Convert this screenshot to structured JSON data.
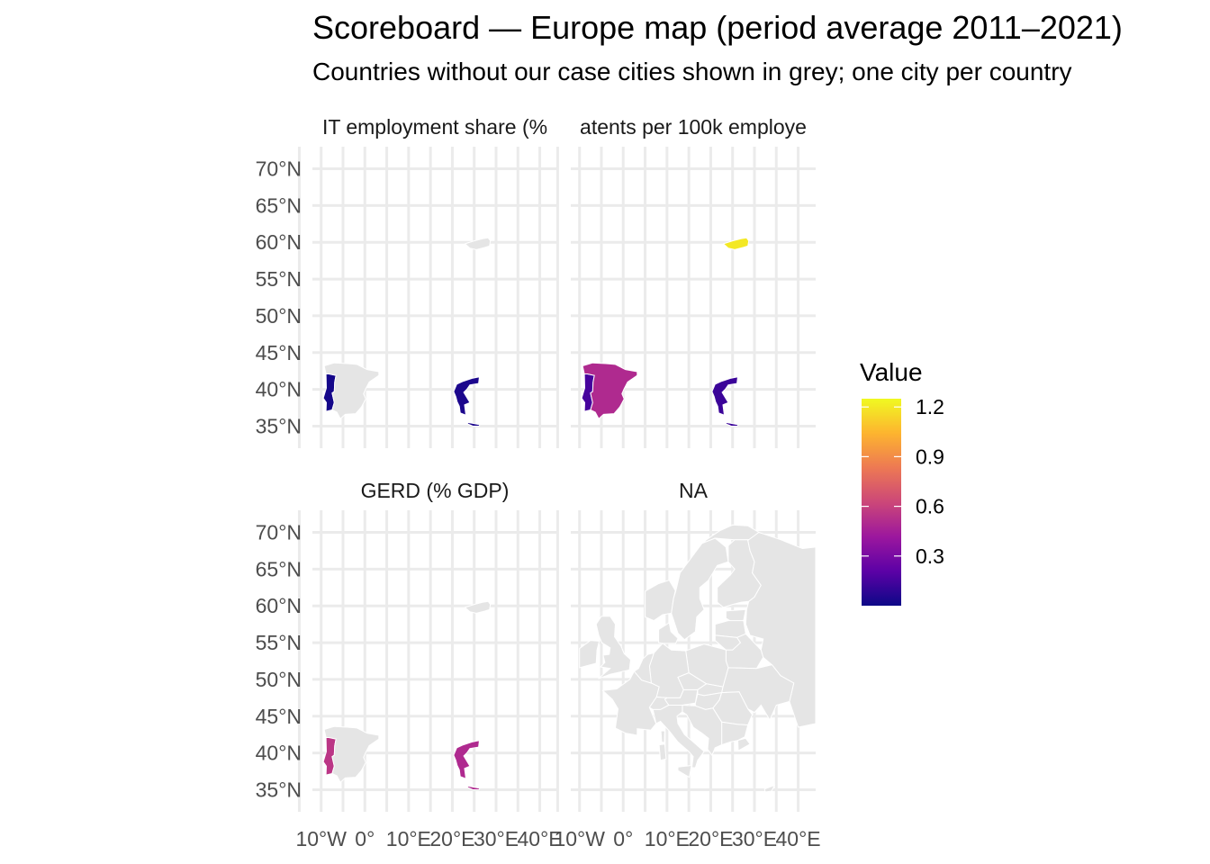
{
  "title": "Scoreboard — Europe map (period average 2011–2021)",
  "subtitle": "Countries without our case cities shown in grey; one city per country",
  "chart_data": {
    "type": "choropleth-map",
    "panels": [
      {
        "label": "IT employment share (%",
        "values": {
          "Portugal": 0.02,
          "Greece": 0.04,
          "Finland": null,
          "Spain": null
        }
      },
      {
        "label": "atents per 100k employe",
        "values": {
          "Portugal": 0.15,
          "Spain": 0.5,
          "Greece": 0.12,
          "Finland": 1.2
        }
      },
      {
        "label": "GERD (% GDP)",
        "values": {
          "Portugal": 0.55,
          "Greece": 0.5,
          "Finland": null,
          "Spain": null
        }
      },
      {
        "label": "NA",
        "values": {}
      }
    ],
    "lat_ticks": [
      "70°N",
      "65°N",
      "60°N",
      "55°N",
      "50°N",
      "45°N",
      "40°N",
      "35°N"
    ],
    "lon_tick_labels": [
      "10°W",
      "0°",
      "10°E",
      "20°E",
      "30°E",
      "40°E"
    ],
    "lat_range": [
      32,
      73
    ],
    "lon_range": [
      -12,
      44
    ],
    "legend": {
      "title": "Value",
      "labels": [
        "1.2",
        "0.9",
        "0.6",
        "0.3"
      ],
      "range": [
        0,
        1.25
      ],
      "colors": [
        "#0d0887",
        "#5c01a6",
        "#9c179e",
        "#cc4778",
        "#ed7953",
        "#fdb42f",
        "#f0f921"
      ]
    },
    "na_color": "#e5e5e5"
  }
}
